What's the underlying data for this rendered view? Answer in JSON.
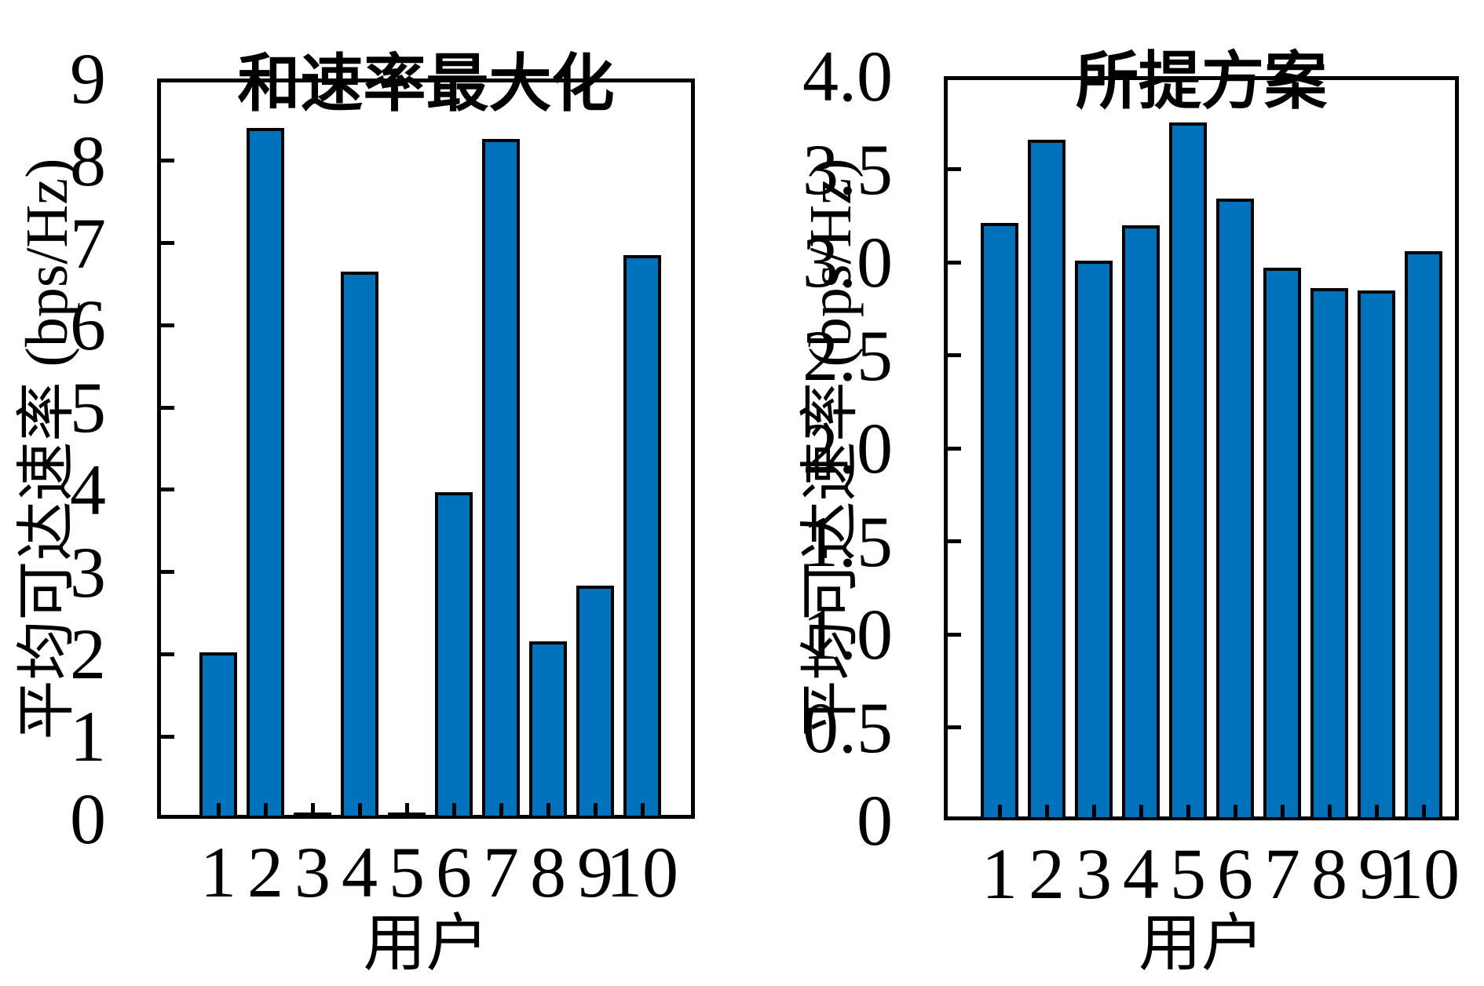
{
  "figure": {
    "background": "#ffffff",
    "bar_color": "#0072BC",
    "axis_color": "#000000"
  },
  "chart_data": [
    {
      "type": "bar",
      "title": "和速率最大化",
      "xlabel": "用户",
      "ylabel": "平均可达速率 (bps/Hz)",
      "categories": [
        "1",
        "2",
        "3",
        "4",
        "5",
        "6",
        "7",
        "8",
        "9",
        "10"
      ],
      "values": [
        2.02,
        8.4,
        0.03,
        6.65,
        0.03,
        3.97,
        8.27,
        2.16,
        2.83,
        6.85
      ],
      "ylim": [
        0,
        9
      ],
      "yticks": [
        0,
        1,
        2,
        3,
        4,
        5,
        6,
        7,
        8,
        9
      ],
      "ytick_labels": [
        "0",
        "1",
        "2",
        "3",
        "4",
        "5",
        "6",
        "7",
        "8",
        "9"
      ],
      "grid": false,
      "legend_position": "none"
    },
    {
      "type": "bar",
      "title": "所提方案",
      "xlabel": "用户",
      "ylabel": "平均可达速率 (bps/Hz)",
      "categories": [
        "1",
        "2",
        "3",
        "4",
        "5",
        "6",
        "7",
        "8",
        "9",
        "10"
      ],
      "values": [
        3.21,
        3.66,
        3.01,
        3.2,
        3.75,
        3.34,
        2.97,
        2.86,
        2.85,
        3.06
      ],
      "ylim": [
        0,
        4
      ],
      "yticks": [
        0,
        0.5,
        1.0,
        1.5,
        2.0,
        2.5,
        3.0,
        3.5,
        4.0
      ],
      "ytick_labels": [
        "0",
        "0.5",
        "1.0",
        "1.5",
        "2.0",
        "2.5",
        "3.0",
        "3.5",
        "4.0"
      ],
      "grid": false,
      "legend_position": "none"
    }
  ]
}
